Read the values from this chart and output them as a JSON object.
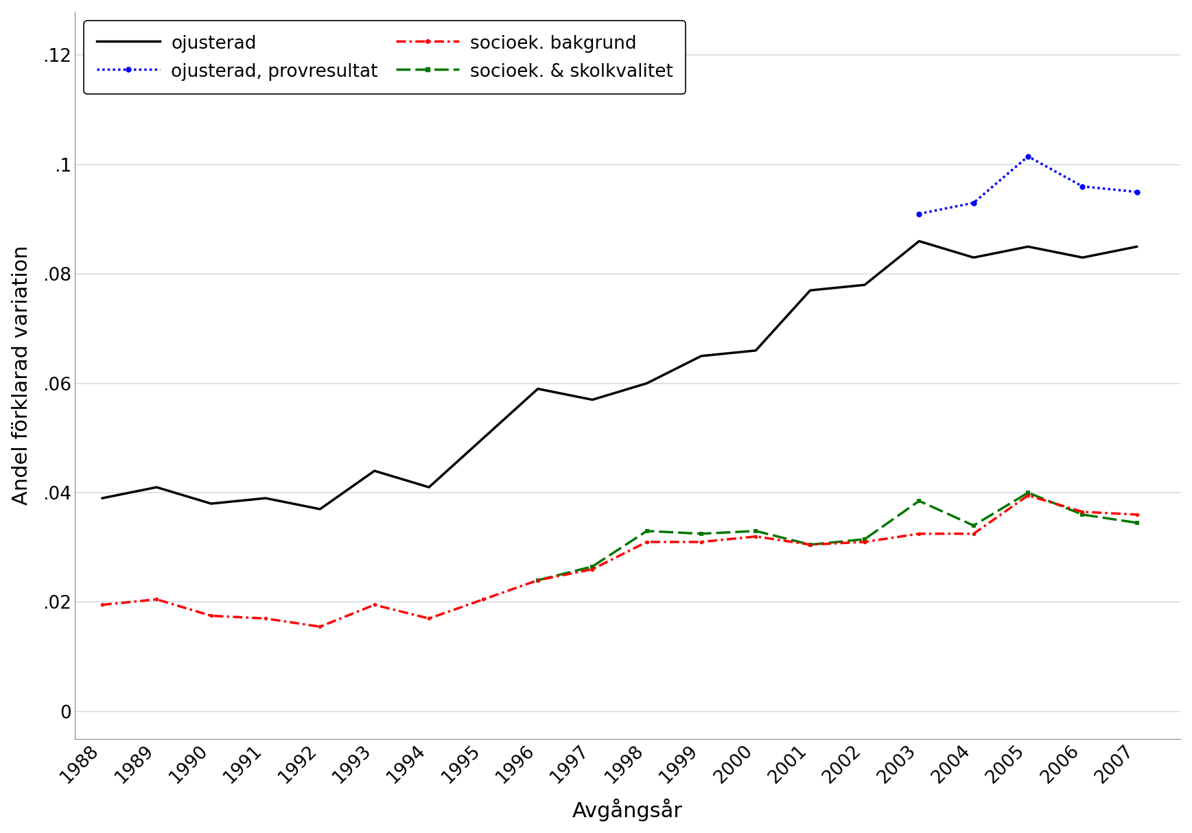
{
  "years_black": [
    1988,
    1989,
    1990,
    1991,
    1992,
    1993,
    1994,
    1995,
    1996,
    1997,
    1998,
    1999,
    2000,
    2001,
    2002,
    2003,
    2004,
    2005,
    2006,
    2007
  ],
  "black": [
    0.039,
    0.041,
    0.038,
    0.039,
    0.037,
    0.044,
    0.041,
    0.05,
    0.059,
    0.057,
    0.06,
    0.065,
    0.066,
    0.077,
    0.078,
    0.086,
    0.083,
    0.085,
    0.083,
    0.085
  ],
  "years_red": [
    1988,
    1989,
    1990,
    1991,
    1992,
    1993,
    1994,
    1995,
    1996,
    1997,
    1998,
    1999,
    2000,
    2001,
    2002,
    2003,
    2004,
    2005,
    2006,
    2007
  ],
  "red": [
    0.0195,
    0.0205,
    0.0175,
    0.017,
    0.0155,
    0.0195,
    0.017,
    0.0205,
    0.024,
    0.026,
    0.031,
    0.031,
    0.032,
    0.0305,
    0.031,
    0.0325,
    0.0325,
    0.0395,
    0.0365,
    0.036
  ],
  "years_green": [
    1996,
    1997,
    1998,
    1999,
    2000,
    2001,
    2002,
    2003,
    2004,
    2005,
    2006,
    2007
  ],
  "green": [
    0.024,
    0.0265,
    0.033,
    0.0325,
    0.033,
    0.0305,
    0.0315,
    0.0385,
    0.034,
    0.04,
    0.036,
    0.0345
  ],
  "years_blue": [
    2003,
    2004,
    2005,
    2006,
    2007
  ],
  "blue": [
    0.091,
    0.093,
    0.1015,
    0.096,
    0.095
  ],
  "black_color": "#000000",
  "red_color": "#ff0000",
  "green_color": "#007700",
  "blue_color": "#0000ff",
  "xlabel": "Avgångsår",
  "ylabel": "Andel förklarad variation",
  "legend_black": "ojusterad",
  "legend_red": "socioek. bakgrund",
  "legend_blue": "ojusterad, provresultat",
  "legend_green": "socioek. & skolkvalitet",
  "ylim_min": -0.005,
  "ylim_max": 0.128,
  "xlim_min": 1987.5,
  "xlim_max": 2007.8,
  "yticks": [
    0,
    0.02,
    0.04,
    0.06,
    0.08,
    0.1,
    0.12
  ],
  "ytick_labels": [
    "0",
    ".02",
    ".04",
    ".06",
    ".08",
    ".1",
    ".12"
  ],
  "bg_color": "#ffffff",
  "grid_color": "#d8dce8"
}
